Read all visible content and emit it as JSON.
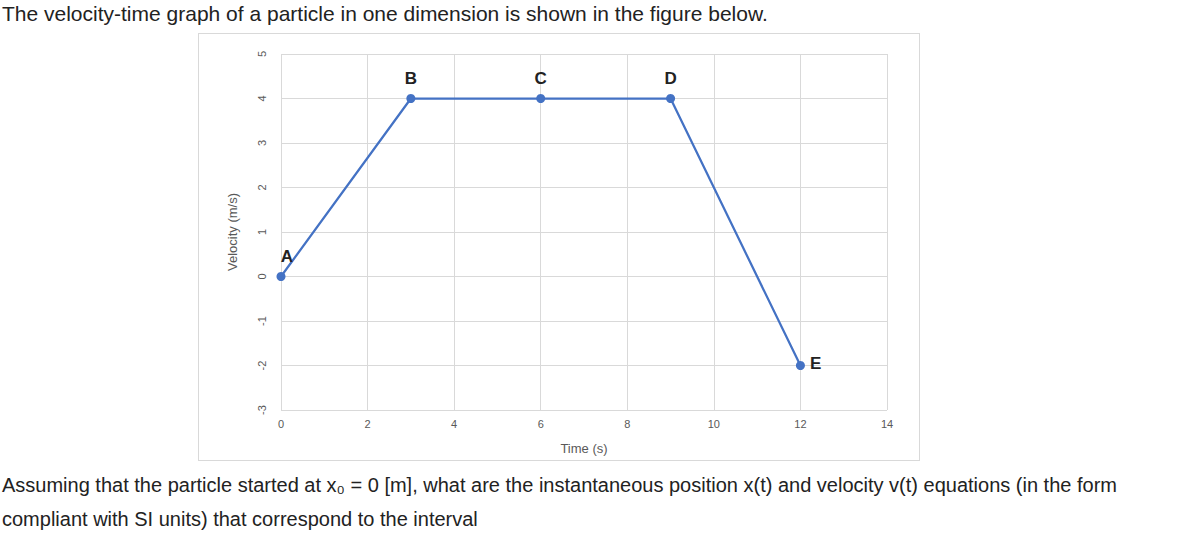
{
  "header": "The velocity-time graph of a particle in one dimension is shown in the figure below.",
  "chart_data": {
    "type": "line",
    "x": [
      0,
      3,
      6,
      9,
      12
    ],
    "values": [
      0,
      4,
      4,
      4,
      -2
    ],
    "point_labels": [
      "A",
      "B",
      "C",
      "D",
      "E"
    ],
    "color": "#4472c4",
    "marker": "circle",
    "xlabel": "Time (s)",
    "ylabel": "Velocity (m/s)",
    "xlim": [
      0,
      14
    ],
    "ylim": [
      -3,
      5
    ],
    "xticks": [
      0,
      2,
      4,
      6,
      8,
      10,
      12,
      14
    ],
    "yticks": [
      -3,
      -2,
      -1,
      0,
      1,
      2,
      3,
      4,
      5
    ],
    "grid": true
  },
  "question": "Assuming that the particle started at x₀ = 0 [m], what are the instantaneous position x(t) and velocity v(t) equations (in the form compliant with SI units) that correspond to the interval"
}
